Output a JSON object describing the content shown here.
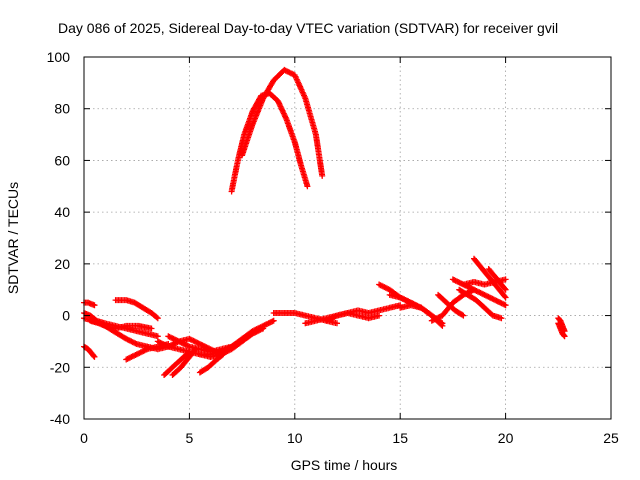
{
  "chart_data": {
    "type": "scatter",
    "title": "Day 086 of 2025, Sidereal Day-to-day VTEC variation (SDTVAR) for receiver gvil",
    "xlabel": "GPS time / hours",
    "ylabel": "SDTVAR / TECUs",
    "xlim": [
      0,
      25
    ],
    "ylim": [
      -40,
      100
    ],
    "xticks": [
      "0",
      "5",
      "10",
      "15",
      "20",
      "25"
    ],
    "yticks": [
      "-40",
      "-20",
      "0",
      "20",
      "40",
      "60",
      "80",
      "100"
    ],
    "grid": true,
    "marker": "plus",
    "color": "#ff0000",
    "tracks": [
      {
        "x": [
          0.0,
          0.3,
          0.6,
          1.0,
          1.5,
          2.0,
          2.5,
          3.0,
          3.5
        ],
        "y": [
          1,
          0,
          -2,
          -3,
          -4,
          -5,
          -6,
          -7,
          -8
        ]
      },
      {
        "x": [
          0.0,
          0.4,
          0.8,
          1.2,
          1.6,
          2.0,
          2.5,
          3.0
        ],
        "y": [
          -1,
          -2,
          -3,
          -5,
          -7,
          -9,
          -11,
          -12
        ]
      },
      {
        "x": [
          0.0,
          0.2,
          0.4,
          0.5
        ],
        "y": [
          -12,
          -13,
          -15,
          -16
        ]
      },
      {
        "x": [
          0.0,
          0.2,
          0.5
        ],
        "y": [
          5,
          5,
          4
        ]
      },
      {
        "x": [
          0.3,
          0.7,
          1.0,
          1.5,
          2.0,
          2.6,
          3.2
        ],
        "y": [
          -2,
          -3,
          -4,
          -5,
          -4,
          -4,
          -5
        ]
      },
      {
        "x": [
          1.5,
          2.0,
          2.4,
          2.8,
          3.2,
          3.5
        ],
        "y": [
          6,
          6,
          5,
          3,
          1,
          -1
        ]
      },
      {
        "x": [
          2.0,
          2.5,
          3.0,
          3.5,
          4.0
        ],
        "y": [
          -17,
          -15,
          -13,
          -12,
          -11
        ]
      },
      {
        "x": [
          3.0,
          3.5,
          4.0,
          4.5,
          5.0,
          5.5,
          6.0,
          6.5
        ],
        "y": [
          -12,
          -13,
          -12,
          -10,
          -9,
          -11,
          -13,
          -15
        ]
      },
      {
        "x": [
          3.5,
          4.0,
          4.5,
          5.0,
          5.5,
          6.0
        ],
        "y": [
          -10,
          -12,
          -13,
          -14,
          -15,
          -16
        ]
      },
      {
        "x": [
          3.8,
          4.2,
          4.6,
          5.0
        ],
        "y": [
          -23,
          -20,
          -17,
          -14
        ]
      },
      {
        "x": [
          4.2,
          4.6,
          5.0,
          5.3
        ],
        "y": [
          -23,
          -20,
          -16,
          -13
        ]
      },
      {
        "x": [
          5.5,
          5.9,
          6.3,
          6.6
        ],
        "y": [
          -22,
          -20,
          -17,
          -15
        ]
      },
      {
        "x": [
          4.0,
          4.5,
          5.0,
          5.5,
          6.0,
          6.5,
          7.0
        ],
        "y": [
          -8,
          -10,
          -12,
          -13,
          -14,
          -13,
          -12
        ]
      },
      {
        "x": [
          5.5,
          6.0,
          6.5,
          7.0,
          7.5,
          8.0,
          8.5,
          9.0
        ],
        "y": [
          -15,
          -15,
          -14,
          -12,
          -9,
          -6,
          -4,
          -2
        ]
      },
      {
        "x": [
          6.0,
          6.5,
          7.0,
          7.5,
          8.0,
          8.5
        ],
        "y": [
          -16,
          -15,
          -13,
          -10,
          -7,
          -5
        ]
      },
      {
        "x": [
          9.0,
          9.5,
          10.0,
          10.5,
          11.0,
          11.5,
          12.0
        ],
        "y": [
          1,
          1,
          1,
          0,
          -1,
          -2,
          -3
        ]
      },
      {
        "x": [
          10.5,
          11.0,
          11.5,
          12.0,
          12.5,
          13.0,
          13.5,
          14.0
        ],
        "y": [
          -3,
          -2,
          -1,
          0,
          1,
          0,
          -1,
          0
        ]
      },
      {
        "x": [
          11.5,
          12.0,
          12.5,
          13.0,
          13.5,
          14.0,
          14.5,
          15.0
        ],
        "y": [
          -2,
          0,
          1,
          2,
          1,
          2,
          3,
          4
        ]
      },
      {
        "x": [
          14.0,
          14.5,
          15.0,
          15.5,
          16.0
        ],
        "y": [
          12,
          10,
          7,
          5,
          3
        ]
      },
      {
        "x": [
          14.5,
          15.0,
          15.5,
          16.0,
          16.5,
          17.0
        ],
        "y": [
          8,
          7,
          5,
          3,
          0,
          -3
        ]
      },
      {
        "x": [
          15.0,
          15.5,
          16.0,
          16.5,
          17.0
        ],
        "y": [
          3,
          4,
          3,
          0,
          -4
        ]
      },
      {
        "x": [
          16.5,
          17.0,
          17.5,
          18.0,
          18.5
        ],
        "y": [
          -2,
          0,
          5,
          8,
          10
        ]
      },
      {
        "x": [
          16.8,
          17.2,
          17.6,
          18.0
        ],
        "y": [
          8,
          5,
          2,
          0
        ]
      },
      {
        "x": [
          17.5,
          18.0,
          18.5,
          19.0,
          19.5,
          20.0
        ],
        "y": [
          14,
          12,
          10,
          8,
          6,
          4
        ]
      },
      {
        "x": [
          17.8,
          18.2,
          18.6,
          19.0,
          19.4,
          19.8
        ],
        "y": [
          10,
          8,
          6,
          3,
          0,
          -1
        ]
      },
      {
        "x": [
          18.5,
          18.8,
          19.1,
          19.4,
          19.7,
          20.0
        ],
        "y": [
          22,
          19,
          16,
          13,
          10,
          7
        ]
      },
      {
        "x": [
          19.2,
          19.5,
          19.8,
          20.0
        ],
        "y": [
          18,
          15,
          12,
          10
        ]
      },
      {
        "x": [
          18.0,
          18.5,
          19.0,
          19.5,
          20.0
        ],
        "y": [
          12,
          13,
          12,
          13,
          14
        ]
      },
      {
        "x": [
          22.5,
          22.6,
          22.7,
          22.8
        ],
        "y": [
          -3,
          -5,
          -7,
          -8
        ]
      },
      {
        "x": [
          22.5,
          22.6,
          22.7,
          22.8
        ],
        "y": [
          -1,
          -2,
          -4,
          -6
        ]
      },
      {
        "x": [
          7.0,
          7.3,
          7.6,
          8.0,
          8.4,
          8.8,
          9.2,
          9.6,
          10.0,
          10.3,
          10.6
        ],
        "y": [
          48,
          60,
          70,
          79,
          85,
          86,
          83,
          76,
          67,
          58,
          50
        ]
      },
      {
        "x": [
          7.5,
          8.0,
          8.5,
          9.0,
          9.5,
          10.0,
          10.5,
          11.0,
          11.3
        ],
        "y": [
          62,
          74,
          84,
          91,
          95,
          93,
          84,
          70,
          54
        ]
      }
    ]
  }
}
